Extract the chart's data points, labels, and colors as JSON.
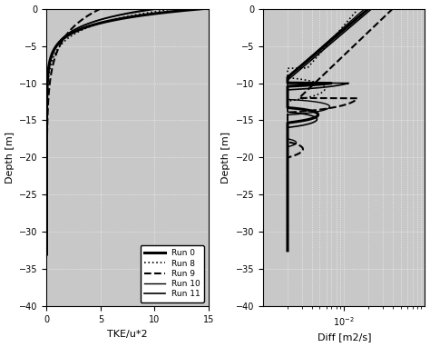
{
  "ylim": [
    -40,
    0
  ],
  "tke_xlim": [
    0,
    15
  ],
  "ylabel": "Depth [m]",
  "xlabel_left": "TKE/u*2",
  "xlabel_right": "Diff [m2/s]",
  "yticks": [
    0,
    -5,
    -10,
    -15,
    -20,
    -25,
    -30,
    -35,
    -40
  ],
  "tke_xticks": [
    0,
    5,
    10,
    15
  ],
  "legend_labels": [
    "Run 0",
    "Run 8",
    "Run 9",
    "Run 10",
    "Run 11"
  ],
  "background_color": "#c8c8c8",
  "figsize": [
    4.74,
    3.82
  ],
  "dpi": 100
}
